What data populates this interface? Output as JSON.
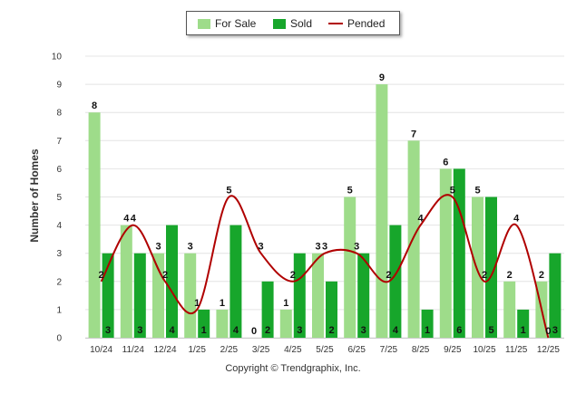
{
  "chart_data": {
    "type": "bar",
    "title": "",
    "xlabel": "",
    "ylabel": "Number of Homes",
    "ylim": [
      0,
      10
    ],
    "yticks": [
      0,
      1,
      2,
      3,
      4,
      5,
      6,
      7,
      8,
      9,
      10
    ],
    "grid": true,
    "legend_position": "top-center",
    "categories": [
      "10/24",
      "11/24",
      "12/24",
      "1/25",
      "2/25",
      "3/25",
      "4/25",
      "5/25",
      "6/25",
      "7/25",
      "8/25",
      "9/25",
      "10/25",
      "11/25",
      "12/25"
    ],
    "series": [
      {
        "name": "For Sale",
        "type": "bar",
        "color": "#9edc8a",
        "values": [
          8,
          4,
          3,
          3,
          1,
          0,
          1,
          3,
          5,
          9,
          7,
          6,
          5,
          2,
          2
        ]
      },
      {
        "name": "Sold",
        "type": "bar",
        "color": "#17a62b",
        "values": [
          3,
          3,
          4,
          1,
          4,
          2,
          3,
          2,
          3,
          4,
          1,
          6,
          5,
          1,
          3
        ]
      },
      {
        "name": "Pended",
        "type": "line",
        "color": "#b00000",
        "values": [
          2,
          4,
          2,
          1,
          5,
          3,
          2,
          3,
          3,
          2,
          4,
          5,
          2,
          4,
          0
        ]
      }
    ]
  },
  "legend": {
    "items": [
      {
        "label": "For Sale"
      },
      {
        "label": "Sold"
      },
      {
        "label": "Pended"
      }
    ]
  },
  "footer": {
    "copyright": "Copyright © Trendgraphix, Inc."
  }
}
